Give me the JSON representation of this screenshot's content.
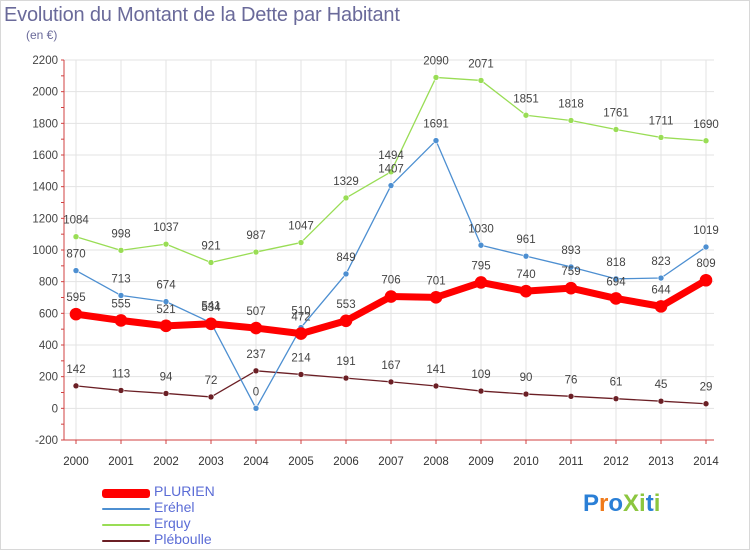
{
  "chart_data": {
    "type": "line",
    "title": "Evolution du Montant de la Dette par Habitant",
    "subtitle": "(en €)",
    "xlabel": "",
    "ylabel": "",
    "categories": [
      "2000",
      "2001",
      "2002",
      "2003",
      "2004",
      "2005",
      "2006",
      "2007",
      "2008",
      "2009",
      "2010",
      "2011",
      "2012",
      "2013",
      "2014"
    ],
    "ylim": [
      -200,
      2200
    ],
    "yticks": [
      -200,
      0,
      200,
      400,
      600,
      800,
      1000,
      1200,
      1400,
      1600,
      1800,
      2000,
      2200
    ],
    "grid": true,
    "legend_position": "bottom-left",
    "series": [
      {
        "name": "PLURIEN",
        "color": "#ff0000",
        "values": [
          595,
          555,
          521,
          534,
          507,
          472,
          553,
          706,
          701,
          795,
          740,
          759,
          694,
          644,
          809
        ],
        "labels": [
          "595",
          "555",
          "521",
          "534",
          "507",
          "472",
          "553",
          "706",
          "701",
          "795",
          "740",
          "759",
          "694",
          "644",
          "809"
        ]
      },
      {
        "name": "Eréhel",
        "color": "#4d8fd1",
        "values": [
          870,
          713,
          674,
          541,
          0,
          510,
          849,
          1407,
          1691,
          1030,
          961,
          893,
          818,
          823,
          1019
        ],
        "labels": [
          "870",
          "713",
          "674",
          "541",
          "0",
          "510",
          "849",
          "1407",
          "1691",
          "1030",
          "961",
          "893",
          "818",
          "823",
          "1019"
        ]
      },
      {
        "name": "Erquy",
        "color": "#99dd55",
        "values": [
          1084,
          998,
          1037,
          921,
          987,
          1047,
          1329,
          1494,
          2090,
          2071,
          1851,
          1818,
          1761,
          1711,
          1690
        ],
        "labels": [
          "1084",
          "998",
          "1037",
          "921",
          "987",
          "1047",
          "1329",
          "1494",
          "2090",
          "2071",
          "1851",
          "1818",
          "1761",
          "1711",
          "1690"
        ]
      },
      {
        "name": "Pléboulle",
        "color": "#6b1f25",
        "values": [
          142,
          113,
          94,
          72,
          237,
          214,
          191,
          167,
          141,
          109,
          90,
          76,
          61,
          45,
          29
        ],
        "labels": [
          "142",
          "113",
          "94",
          "72",
          "237",
          "214",
          "191",
          "167",
          "141",
          "109",
          "90",
          "76",
          "61",
          "45",
          "29"
        ]
      }
    ]
  },
  "logo": {
    "text": "ProXiti",
    "colors": [
      "#2a7fd6",
      "#f07a1a",
      "#2a7fd6",
      "#8cc63f",
      "#8cc63f",
      "#2a7fd6",
      "#8cc63f"
    ]
  }
}
